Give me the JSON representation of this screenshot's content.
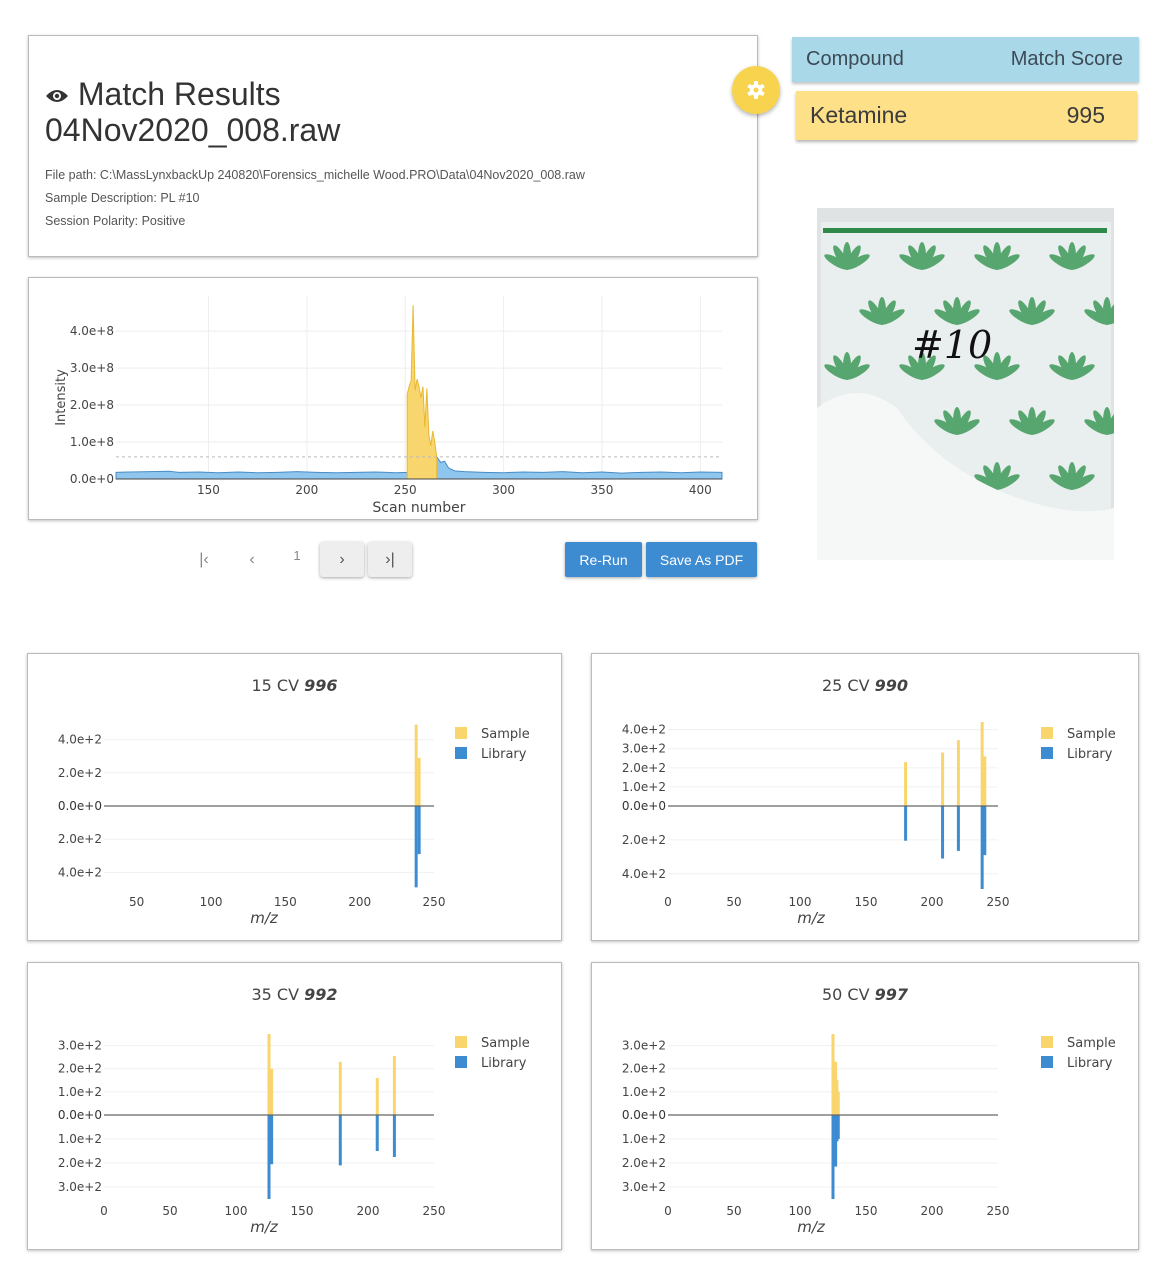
{
  "info": {
    "icon": "eye-icon",
    "title": "Match Results",
    "filename": "04Nov2020_008.raw",
    "file_path": "File path: C:\\MassLynxbackUp 240820\\Forensics_michelle Wood.PRO\\Data\\04Nov2020_008.raw",
    "sample_description": "Sample Description: PL #10",
    "session_polarity": "Session Polarity: Positive"
  },
  "settings_icon": "gear-icon",
  "results_table": {
    "headers": [
      "Compound",
      "Match Score"
    ],
    "rows": [
      {
        "compound": "Ketamine",
        "score": "995"
      }
    ]
  },
  "photo": {
    "handwriting": "#10"
  },
  "colors": {
    "sample": "#f9d56e",
    "library": "#3d8bd0",
    "table_header": "#a9d9e9",
    "table_row": "#fde088",
    "button": "#3d8bd0",
    "baseline_fill": "#8fc6ee"
  },
  "pagination": {
    "first": "first-page-icon",
    "prev": "prev-page-icon",
    "page": "1",
    "next": "next-page-icon",
    "last": "last-page-icon"
  },
  "buttons": {
    "rerun": "Re-Run",
    "save_pdf": "Save As PDF"
  },
  "chart_data": [
    {
      "type": "area",
      "xlabel": "Scan number",
      "ylabel": "Intensity",
      "xlim": [
        103,
        411
      ],
      "ylim": [
        0,
        495000000
      ],
      "xticks": [
        150,
        200,
        250,
        300,
        350,
        400
      ],
      "yticks": [
        {
          "v": 0,
          "label": "0.0e+0"
        },
        {
          "v": 100000000,
          "label": "1.0e+8"
        },
        {
          "v": 200000000,
          "label": "2.0e+8"
        },
        {
          "v": 300000000,
          "label": "3.0e+8"
        },
        {
          "v": 400000000,
          "label": "4.0e+8"
        }
      ],
      "threshold": 60000000,
      "grid": true,
      "series": [
        {
          "role": "baseline",
          "points": [
            [
              103,
              18000000
            ],
            [
              110,
              19000000
            ],
            [
              120,
              20000000
            ],
            [
              130,
              21000000
            ],
            [
              135,
              18000000
            ],
            [
              145,
              19000000
            ],
            [
              155,
              17000000
            ],
            [
              165,
              19000000
            ],
            [
              175,
              17000000
            ],
            [
              185,
              18000000
            ],
            [
              195,
              20000000
            ],
            [
              205,
              18000000
            ],
            [
              215,
              17000000
            ],
            [
              225,
              18000000
            ],
            [
              235,
              19000000
            ],
            [
              245,
              17000000
            ],
            [
              251,
              18000000
            ],
            [
              266,
              60000000
            ],
            [
              268,
              45000000
            ],
            [
              270,
              48000000
            ],
            [
              272,
              30000000
            ],
            [
              275,
              22000000
            ],
            [
              280,
              20000000
            ],
            [
              290,
              18000000
            ],
            [
              300,
              17000000
            ],
            [
              310,
              19000000
            ],
            [
              320,
              18000000
            ],
            [
              330,
              20000000
            ],
            [
              340,
              17000000
            ],
            [
              350,
              19000000
            ],
            [
              360,
              16000000
            ],
            [
              370,
              18000000
            ],
            [
              380,
              19000000
            ],
            [
              390,
              17000000
            ],
            [
              400,
              19000000
            ],
            [
              411,
              18000000
            ]
          ]
        },
        {
          "role": "match",
          "points": [
            [
              251,
              0
            ],
            [
              251,
              230000000
            ],
            [
              252,
              250000000
            ],
            [
              253,
              265000000
            ],
            [
              254,
              470000000
            ],
            [
              255,
              240000000
            ],
            [
              256,
              270000000
            ],
            [
              257,
              250000000
            ],
            [
              258,
              220000000
            ],
            [
              259,
              250000000
            ],
            [
              260,
              140000000
            ],
            [
              261,
              245000000
            ],
            [
              262,
              120000000
            ],
            [
              263,
              90000000
            ],
            [
              264,
              130000000
            ],
            [
              265,
              100000000
            ],
            [
              266,
              60000000
            ],
            [
              266,
              0
            ]
          ]
        }
      ]
    },
    {
      "type": "bar",
      "title": "15 CV",
      "score": "996",
      "xlabel": "m/z",
      "xlim": [
        28,
        250
      ],
      "xticks": [
        50,
        100,
        150,
        200,
        250
      ],
      "ylim_top": [
        0,
        500
      ],
      "ylim_bottom": [
        0,
        500
      ],
      "yticks_top": [
        {
          "v": 200,
          "label": "2.0e+2"
        },
        {
          "v": 400,
          "label": "4.0e+2"
        }
      ],
      "yticks_bottom": [
        {
          "v": 200,
          "label": "2.0e+2"
        },
        {
          "v": 400,
          "label": "4.0e+2"
        }
      ],
      "zero_label": "0.0e+0",
      "series": [
        {
          "name": "Sample",
          "mz": [
            238,
            240
          ],
          "values": [
            490,
            290
          ]
        },
        {
          "name": "Library",
          "mz": [
            238,
            240
          ],
          "values": [
            490,
            290
          ]
        }
      ]
    },
    {
      "type": "bar",
      "title": "25 CV",
      "score": "990",
      "xlabel": "m/z",
      "xlim": [
        0,
        250
      ],
      "xticks": [
        0,
        50,
        100,
        150,
        200,
        250
      ],
      "ylim_top": [
        0,
        440
      ],
      "ylim_bottom": [
        0,
        490
      ],
      "yticks_top": [
        {
          "v": 100,
          "label": "1.0e+2"
        },
        {
          "v": 200,
          "label": "2.0e+2"
        },
        {
          "v": 300,
          "label": "3.0e+2"
        },
        {
          "v": 400,
          "label": "4.0e+2"
        }
      ],
      "yticks_bottom": [
        {
          "v": 200,
          "label": "2.0e+2"
        },
        {
          "v": 400,
          "label": "4.0e+2"
        }
      ],
      "zero_label": "0.0e+0",
      "series": [
        {
          "name": "Sample",
          "mz": [
            180,
            208,
            220,
            238,
            240
          ],
          "values": [
            230,
            280,
            345,
            440,
            260
          ]
        },
        {
          "name": "Library",
          "mz": [
            180,
            208,
            220,
            238,
            240
          ],
          "values": [
            205,
            310,
            265,
            490,
            290
          ]
        }
      ]
    },
    {
      "type": "bar",
      "title": "35 CV",
      "score": "992",
      "xlabel": "m/z",
      "xlim": [
        0,
        250
      ],
      "xticks": [
        0,
        50,
        100,
        150,
        200,
        250
      ],
      "ylim_top": [
        0,
        350
      ],
      "ylim_bottom": [
        0,
        350
      ],
      "yticks_top": [
        {
          "v": 100,
          "label": "1.0e+2"
        },
        {
          "v": 200,
          "label": "2.0e+2"
        },
        {
          "v": 300,
          "label": "3.0e+2"
        }
      ],
      "yticks_bottom": [
        {
          "v": 100,
          "label": "1.0e+2"
        },
        {
          "v": 200,
          "label": "2.0e+2"
        },
        {
          "v": 300,
          "label": "3.0e+2"
        }
      ],
      "zero_label": "0.0e+0",
      "series": [
        {
          "name": "Sample",
          "mz": [
            125,
            127,
            179,
            207,
            220
          ],
          "values": [
            350,
            200,
            230,
            160,
            255
          ]
        },
        {
          "name": "Library",
          "mz": [
            125,
            127,
            179,
            207,
            220
          ],
          "values": [
            350,
            205,
            210,
            150,
            175
          ]
        }
      ]
    },
    {
      "type": "bar",
      "title": "50 CV",
      "score": "997",
      "xlabel": "m/z",
      "xlim": [
        0,
        250
      ],
      "xticks": [
        0,
        50,
        100,
        150,
        200,
        250
      ],
      "ylim_top": [
        0,
        350
      ],
      "ylim_bottom": [
        0,
        350
      ],
      "yticks_top": [
        {
          "v": 100,
          "label": "1.0e+2"
        },
        {
          "v": 200,
          "label": "2.0e+2"
        },
        {
          "v": 300,
          "label": "3.0e+2"
        }
      ],
      "yticks_bottom": [
        {
          "v": 100,
          "label": "1.0e+2"
        },
        {
          "v": 200,
          "label": "2.0e+2"
        },
        {
          "v": 300,
          "label": "3.0e+2"
        }
      ],
      "zero_label": "0.0e+0",
      "series": [
        {
          "name": "Sample",
          "mz": [
            125,
            127,
            128,
            129
          ],
          "values": [
            350,
            230,
            150,
            100
          ]
        },
        {
          "name": "Library",
          "mz": [
            125,
            127,
            128,
            129
          ],
          "values": [
            350,
            215,
            110,
            100
          ]
        }
      ]
    }
  ]
}
